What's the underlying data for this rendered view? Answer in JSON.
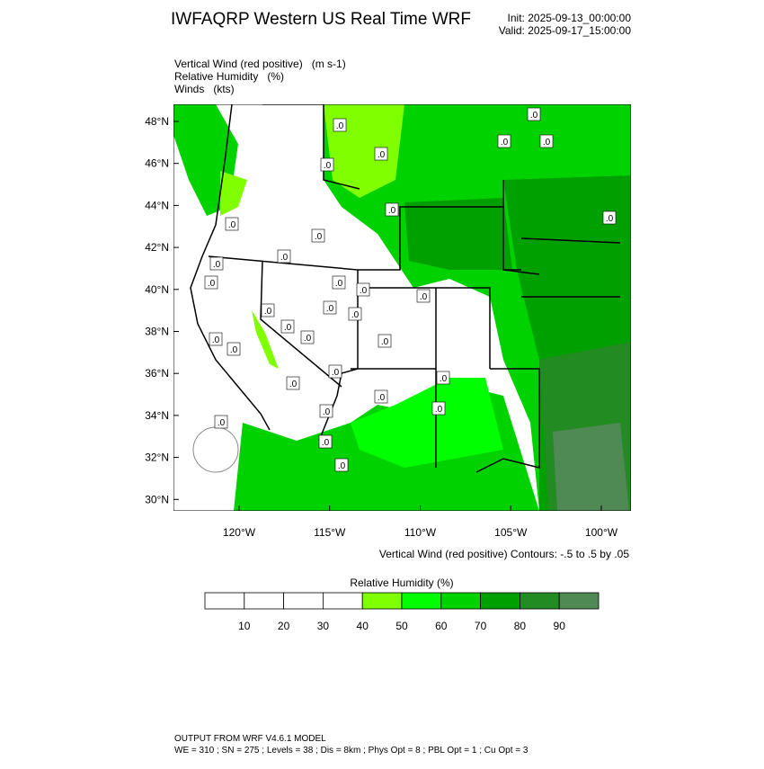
{
  "header": {
    "title": "IWFAQRP Western US Real Time WRF",
    "init": "Init: 2025-09-13_00:00:00",
    "valid": "Valid: 2025-09-17_15:00:00"
  },
  "fields": [
    "Vertical Wind (red positive)   (m s-1)",
    "Relative Humidity   (%)",
    "Winds   (kts)"
  ],
  "map": {
    "lat_labels": [
      "48°N",
      "46°N",
      "44°N",
      "42°N",
      "40°N",
      "38°N",
      "36°N",
      "34°N",
      "32°N",
      "30°N"
    ],
    "lon_labels": [
      "120°W",
      "115°W",
      "110°W",
      "105°W",
      "100°W"
    ],
    "contour_label": ".0",
    "contour_note": "Vertical Wind (red positive) Contours: -.5 to .5 by .05"
  },
  "colorbar": {
    "title": "Relative Humidity  (%)",
    "ticks": [
      10,
      20,
      30,
      40,
      50,
      60,
      70,
      80,
      90
    ],
    "colors": [
      "#ffffff",
      "#ffffff",
      "#ffffff",
      "#ffffff",
      "#80ff00",
      "#00ff00",
      "#00d200",
      "#00a000",
      "#228b22",
      "#4f8a55"
    ]
  },
  "footer": {
    "line1": "OUTPUT FROM WRF V4.6.1 MODEL",
    "line2": "WE = 310 ; SN = 275 ; Levels = 38 ; Dis = 8km ; Phys Opt = 8 ; PBL Opt = 1 ; Cu Opt = 3"
  }
}
